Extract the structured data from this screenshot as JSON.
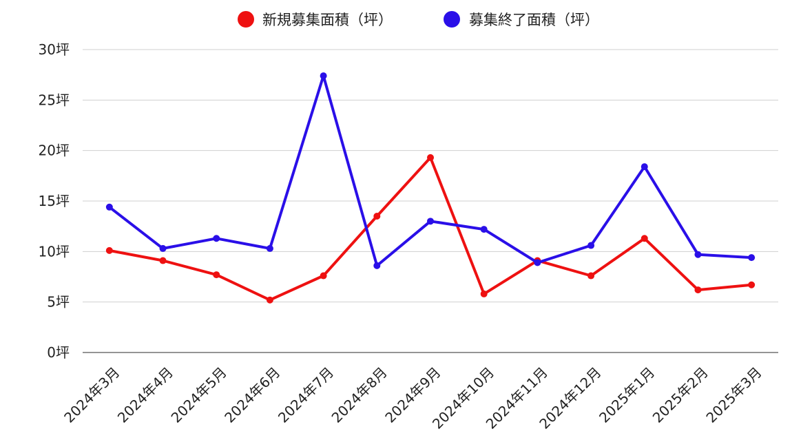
{
  "chart_data": {
    "type": "line",
    "title": "",
    "xlabel": "",
    "ylabel": "",
    "categories": [
      "2024年3月",
      "2024年4月",
      "2024年5月",
      "2024年6月",
      "2024年7月",
      "2024年8月",
      "2024年9月",
      "2024年10月",
      "2024年11月",
      "2024年12月",
      "2025年1月",
      "2025年2月",
      "2025年3月"
    ],
    "series": [
      {
        "name": "新規募集面積（坪）",
        "color": "#ee1111",
        "values": [
          10.1,
          9.1,
          7.7,
          5.2,
          7.6,
          13.5,
          19.3,
          5.8,
          9.1,
          7.6,
          11.3,
          6.2,
          6.7
        ]
      },
      {
        "name": "募集終了面積（坪）",
        "color": "#2a0fe8",
        "values": [
          14.4,
          10.3,
          11.3,
          10.3,
          27.4,
          8.6,
          13.0,
          12.2,
          8.9,
          10.6,
          18.4,
          9.7,
          9.4
        ]
      }
    ],
    "ylim": [
      0,
      30
    ],
    "yticks": [
      0,
      5,
      10,
      15,
      20,
      25,
      30
    ],
    "ytick_labels": [
      "0坪",
      "5坪",
      "10坪",
      "15坪",
      "20坪",
      "25坪",
      "30坪"
    ],
    "grid": true,
    "legend_position": "top-center"
  }
}
